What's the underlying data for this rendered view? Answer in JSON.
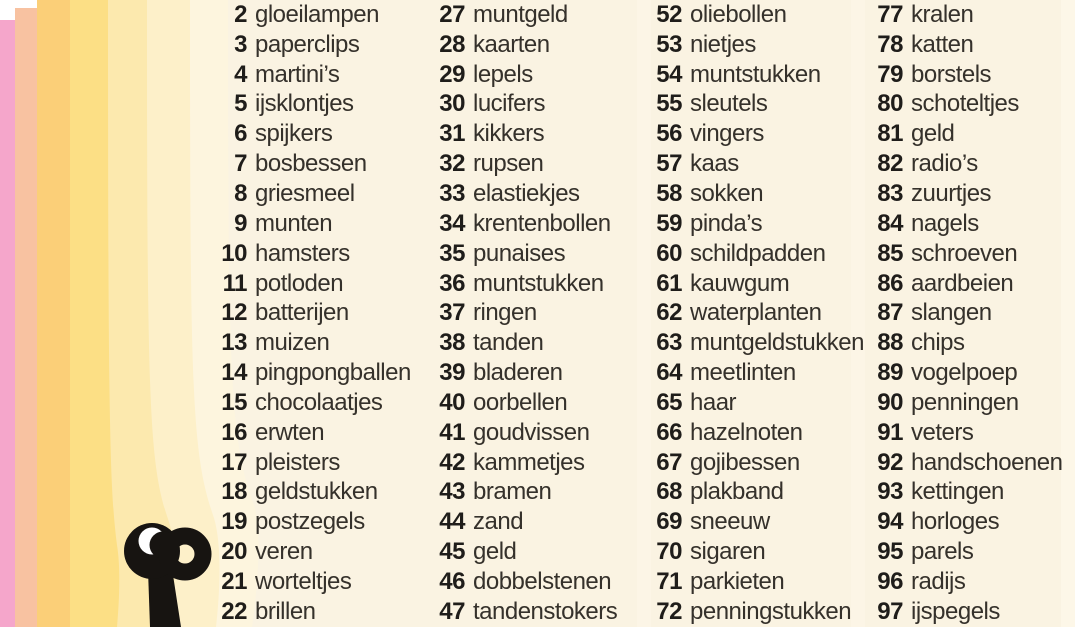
{
  "page": {
    "background": "#faf3e2",
    "description": "numbered word list page"
  },
  "decor": {
    "stripes": [
      {
        "name": "stripe-light-cream",
        "color": "#fdf5de"
      },
      {
        "name": "stripe-cream",
        "color": "#fdf0c9"
      },
      {
        "name": "stripe-pale-yellow",
        "color": "#fce9ae"
      },
      {
        "name": "stripe-yellow",
        "color": "#fcdf85"
      },
      {
        "name": "stripe-orange",
        "color": "#fbcf78"
      },
      {
        "name": "stripe-salmon",
        "color": "#f8c2a1"
      },
      {
        "name": "stripe-pink",
        "color": "#f5a6cb"
      },
      {
        "name": "notch-white",
        "color": "#ffffff"
      }
    ],
    "icon": {
      "name": "lorgnette-icon",
      "color": "#171411",
      "crescent_color": "#ffffff"
    }
  },
  "columns": [
    {
      "items": [
        {
          "n": "2",
          "label": "gloeilampen"
        },
        {
          "n": "3",
          "label": "paperclips"
        },
        {
          "n": "4",
          "label": "martini’s"
        },
        {
          "n": "5",
          "label": "ijsklontjes"
        },
        {
          "n": "6",
          "label": "spijkers"
        },
        {
          "n": "7",
          "label": "bosbessen"
        },
        {
          "n": "8",
          "label": "griesmeel"
        },
        {
          "n": "9",
          "label": "munten"
        },
        {
          "n": "10",
          "label": "hamsters"
        },
        {
          "n": "11",
          "label": "potloden"
        },
        {
          "n": "12",
          "label": "batterijen"
        },
        {
          "n": "13",
          "label": "muizen"
        },
        {
          "n": "14",
          "label": "pingpongballen"
        },
        {
          "n": "15",
          "label": "chocolaatjes"
        },
        {
          "n": "16",
          "label": "erwten"
        },
        {
          "n": "17",
          "label": "pleisters"
        },
        {
          "n": "18",
          "label": "geldstukken"
        },
        {
          "n": "19",
          "label": "postzegels"
        },
        {
          "n": "20",
          "label": "veren"
        },
        {
          "n": "21",
          "label": "worteltjes"
        },
        {
          "n": "22",
          "label": "brillen"
        }
      ]
    },
    {
      "items": [
        {
          "n": "27",
          "label": "muntgeld"
        },
        {
          "n": "28",
          "label": "kaarten"
        },
        {
          "n": "29",
          "label": "lepels"
        },
        {
          "n": "30",
          "label": "lucifers"
        },
        {
          "n": "31",
          "label": "kikkers"
        },
        {
          "n": "32",
          "label": "rupsen"
        },
        {
          "n": "33",
          "label": "elastiekjes"
        },
        {
          "n": "34",
          "label": "krentenbollen"
        },
        {
          "n": "35",
          "label": "punaises"
        },
        {
          "n": "36",
          "label": "muntstukken"
        },
        {
          "n": "37",
          "label": "ringen"
        },
        {
          "n": "38",
          "label": "tanden"
        },
        {
          "n": "39",
          "label": "bladeren"
        },
        {
          "n": "40",
          "label": "oorbellen"
        },
        {
          "n": "41",
          "label": "goudvissen"
        },
        {
          "n": "42",
          "label": "kammetjes"
        },
        {
          "n": "43",
          "label": "bramen"
        },
        {
          "n": "44",
          "label": "zand"
        },
        {
          "n": "45",
          "label": "geld"
        },
        {
          "n": "46",
          "label": "dobbelstenen"
        },
        {
          "n": "47",
          "label": "tandenstokers"
        }
      ]
    },
    {
      "items": [
        {
          "n": "52",
          "label": "oliebollen"
        },
        {
          "n": "53",
          "label": "nietjes"
        },
        {
          "n": "54",
          "label": "muntstukken"
        },
        {
          "n": "55",
          "label": "sleutels"
        },
        {
          "n": "56",
          "label": "vingers"
        },
        {
          "n": "57",
          "label": "kaas"
        },
        {
          "n": "58",
          "label": "sokken"
        },
        {
          "n": "59",
          "label": "pinda’s"
        },
        {
          "n": "60",
          "label": "schildpadden"
        },
        {
          "n": "61",
          "label": "kauwgum"
        },
        {
          "n": "62",
          "label": "waterplanten"
        },
        {
          "n": "63",
          "label": "muntgeldstukken"
        },
        {
          "n": "64",
          "label": "meetlinten"
        },
        {
          "n": "65",
          "label": "haar"
        },
        {
          "n": "66",
          "label": "hazelnoten"
        },
        {
          "n": "67",
          "label": "gojibessen"
        },
        {
          "n": "68",
          "label": "plakband"
        },
        {
          "n": "69",
          "label": "sneeuw"
        },
        {
          "n": "70",
          "label": "sigaren"
        },
        {
          "n": "71",
          "label": "parkieten"
        },
        {
          "n": "72",
          "label": "penningstukken"
        }
      ]
    },
    {
      "items": [
        {
          "n": "77",
          "label": "kralen"
        },
        {
          "n": "78",
          "label": "katten"
        },
        {
          "n": "79",
          "label": "borstels"
        },
        {
          "n": "80",
          "label": "schoteltjes"
        },
        {
          "n": "81",
          "label": "geld"
        },
        {
          "n": "82",
          "label": "radio’s"
        },
        {
          "n": "83",
          "label": "zuurtjes"
        },
        {
          "n": "84",
          "label": "nagels"
        },
        {
          "n": "85",
          "label": "schroeven"
        },
        {
          "n": "86",
          "label": "aardbeien"
        },
        {
          "n": "87",
          "label": "slangen"
        },
        {
          "n": "88",
          "label": "chips"
        },
        {
          "n": "89",
          "label": "vogelpoep"
        },
        {
          "n": "90",
          "label": "penningen"
        },
        {
          "n": "91",
          "label": "veters"
        },
        {
          "n": "92",
          "label": "handschoenen"
        },
        {
          "n": "93",
          "label": "kettingen"
        },
        {
          "n": "94",
          "label": "horloges"
        },
        {
          "n": "95",
          "label": "parels"
        },
        {
          "n": "96",
          "label": "radijs"
        },
        {
          "n": "97",
          "label": "ijspegels"
        }
      ]
    }
  ]
}
